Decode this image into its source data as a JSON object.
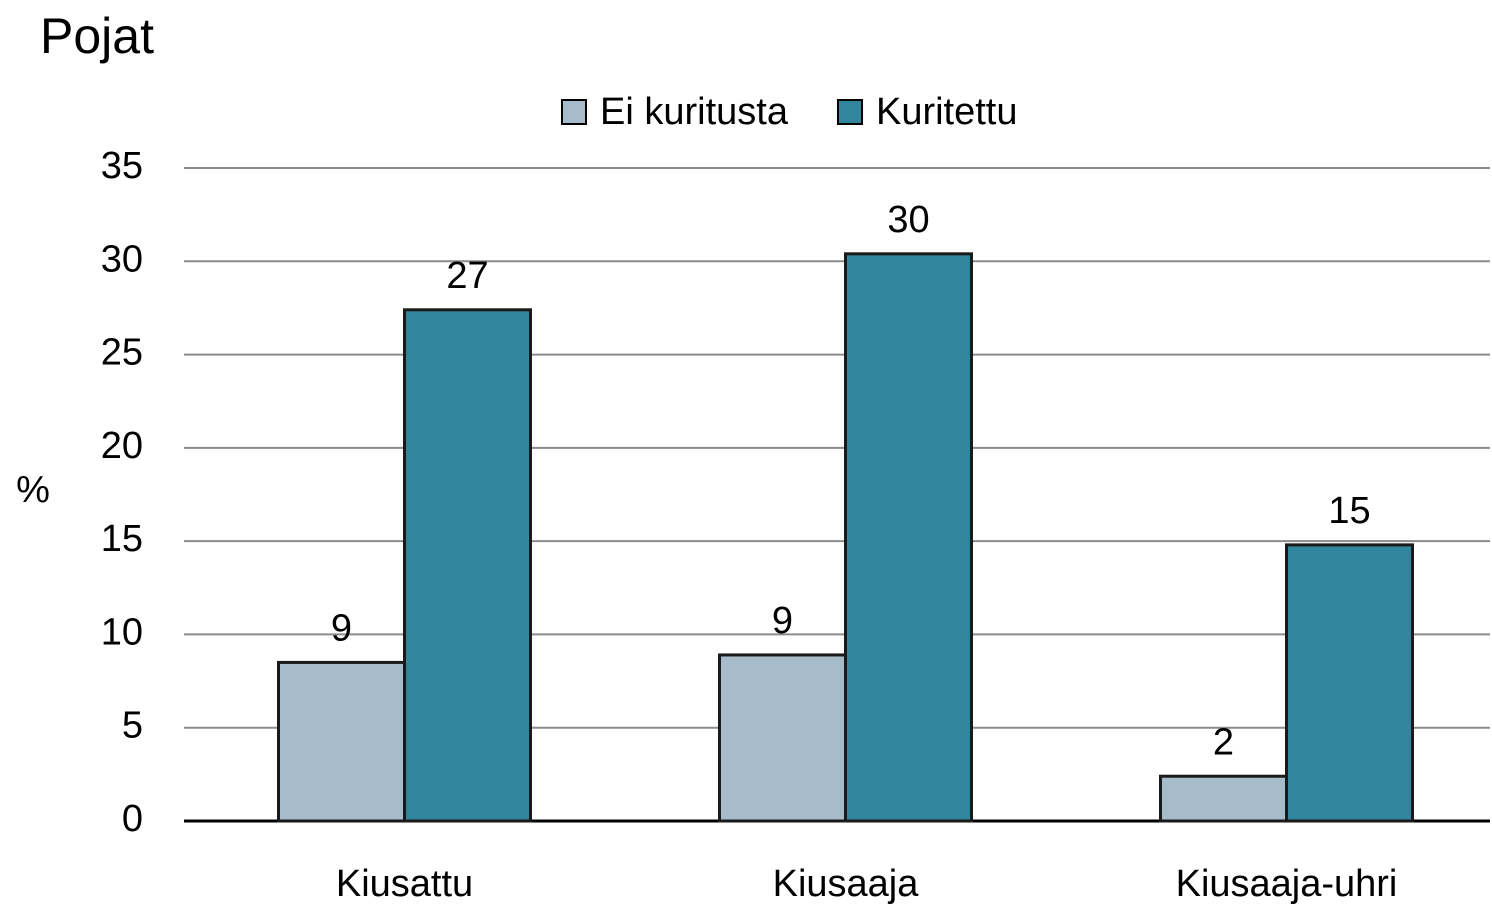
{
  "chart_data": {
    "type": "bar",
    "title": "Pojat",
    "y_label": "%",
    "categories": [
      "Kiusattu",
      "Kiusaaja",
      "Kiusaaja-uhri"
    ],
    "series": [
      {
        "name": "Ei kuritusta",
        "color": "#a6bccb",
        "values": [
          8.5,
          8.9,
          2.4
        ],
        "value_labels": [
          "9",
          "9",
          "2"
        ]
      },
      {
        "name": "Kuritettu",
        "color": "#31859c",
        "values": [
          27.4,
          30.4,
          14.8
        ],
        "value_labels": [
          "27",
          "30",
          "15"
        ]
      }
    ],
    "ylim": [
      0,
      35
    ],
    "yticks": [
      0,
      5,
      10,
      15,
      20,
      25,
      30,
      35
    ],
    "grid": true,
    "legend": "top"
  }
}
